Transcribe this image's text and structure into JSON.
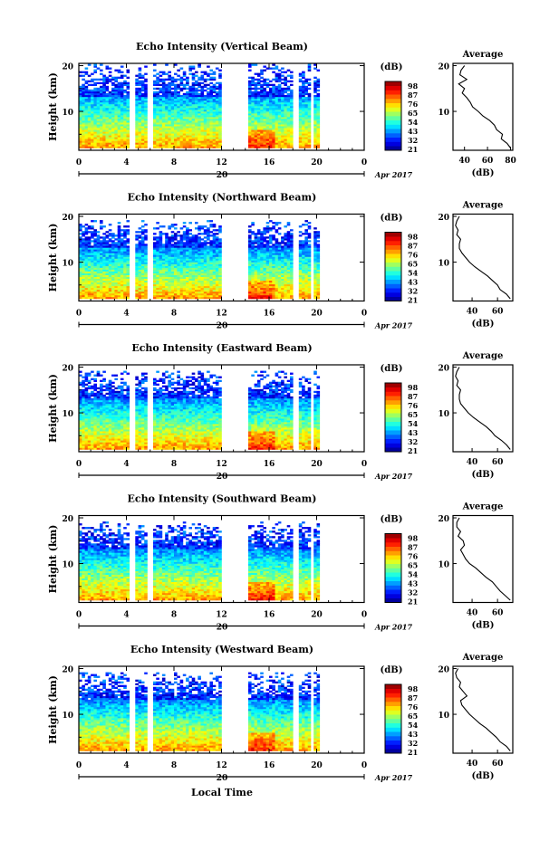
{
  "figure": {
    "x_axis_title": "Local Time",
    "date_label": "Apr 2017",
    "day_label": "20",
    "colorbar_unit": "(dB)",
    "avg_unit": "(dB)"
  },
  "chart_data": [
    {
      "type": "heatmap",
      "title": "Echo Intensity (Vertical Beam)",
      "ylabel": "Height (km)",
      "x_ticks": [
        "0",
        "4",
        "8",
        "12",
        "16",
        "20",
        "0"
      ],
      "xlim": [
        0,
        24
      ],
      "y_ticks": [
        "20",
        "10"
      ],
      "ylim": [
        1.5,
        20.5
      ],
      "colorbar_ticks": [
        "98",
        "87",
        "76",
        "65",
        "54",
        "43",
        "32",
        "21"
      ],
      "gaps_hours": [
        [
          4.2,
          4.7
        ],
        [
          5.7,
          6.1
        ],
        [
          11.9,
          14.1
        ],
        [
          18.0,
          18.3
        ],
        [
          19.3,
          19.6
        ]
      ],
      "top_km": 20,
      "avg_panel": {
        "title": "Average",
        "x_ticks": [
          "40",
          "60",
          "80"
        ],
        "xlim": [
          30,
          82
        ],
        "y_ticks": [
          "20",
          "10"
        ],
        "profile": [
          [
            80,
            2
          ],
          [
            77,
            3
          ],
          [
            72,
            4
          ],
          [
            73,
            5
          ],
          [
            68,
            6
          ],
          [
            66,
            7
          ],
          [
            62,
            8
          ],
          [
            56,
            9
          ],
          [
            52,
            10
          ],
          [
            47,
            11
          ],
          [
            45,
            12
          ],
          [
            42,
            13
          ],
          [
            38,
            14
          ],
          [
            40,
            15
          ],
          [
            35,
            16
          ],
          [
            42,
            17
          ],
          [
            36,
            18
          ],
          [
            37,
            19
          ],
          [
            40,
            20
          ]
        ]
      }
    },
    {
      "type": "heatmap",
      "title": "Echo Intensity (Northward Beam)",
      "ylabel": "Height (km)",
      "x_ticks": [
        "0",
        "4",
        "8",
        "12",
        "16",
        "20",
        "0"
      ],
      "xlim": [
        0,
        24
      ],
      "y_ticks": [
        "20",
        "10"
      ],
      "ylim": [
        1.5,
        20.5
      ],
      "colorbar_ticks": [
        "98",
        "87",
        "76",
        "65",
        "54",
        "43",
        "32",
        "21"
      ],
      "gaps_hours": [
        [
          4.2,
          4.7
        ],
        [
          5.7,
          6.1
        ],
        [
          11.9,
          14.1
        ],
        [
          18.0,
          18.3
        ],
        [
          19.3,
          19.6
        ]
      ],
      "top_km": 19,
      "avg_panel": {
        "title": "Average",
        "x_ticks": [
          "40",
          "60"
        ],
        "xlim": [
          25,
          72
        ],
        "y_ticks": [
          "20",
          "10"
        ],
        "profile": [
          [
            70,
            2
          ],
          [
            67,
            3
          ],
          [
            62,
            4
          ],
          [
            60,
            5
          ],
          [
            56,
            6
          ],
          [
            52,
            7
          ],
          [
            47,
            8
          ],
          [
            42,
            9
          ],
          [
            38,
            10
          ],
          [
            35,
            11
          ],
          [
            32,
            12
          ],
          [
            30,
            13
          ],
          [
            30,
            14
          ],
          [
            31,
            15
          ],
          [
            28,
            16
          ],
          [
            29,
            17
          ],
          [
            27,
            18
          ],
          [
            28,
            19
          ],
          [
            30,
            20
          ]
        ]
      }
    },
    {
      "type": "heatmap",
      "title": "Echo Intensity (Eastward Beam)",
      "ylabel": "Height (km)",
      "x_ticks": [
        "0",
        "4",
        "8",
        "12",
        "16",
        "20",
        "0"
      ],
      "xlim": [
        0,
        24
      ],
      "y_ticks": [
        "20",
        "10"
      ],
      "ylim": [
        1.5,
        20.5
      ],
      "colorbar_ticks": [
        "98",
        "87",
        "76",
        "65",
        "54",
        "43",
        "32",
        "21"
      ],
      "gaps_hours": [
        [
          4.2,
          4.7
        ],
        [
          5.7,
          6.1
        ],
        [
          11.9,
          14.1
        ],
        [
          18.0,
          18.3
        ],
        [
          19.3,
          19.6
        ]
      ],
      "top_km": 19,
      "avg_panel": {
        "title": "Average",
        "x_ticks": [
          "40",
          "60"
        ],
        "xlim": [
          25,
          72
        ],
        "y_ticks": [
          "20",
          "10"
        ],
        "profile": [
          [
            70,
            2
          ],
          [
            67,
            3
          ],
          [
            63,
            4
          ],
          [
            58,
            5
          ],
          [
            55,
            6
          ],
          [
            51,
            7
          ],
          [
            46,
            8
          ],
          [
            41,
            9
          ],
          [
            37,
            10
          ],
          [
            34,
            11
          ],
          [
            31,
            12
          ],
          [
            30,
            13
          ],
          [
            30,
            14
          ],
          [
            31,
            15
          ],
          [
            28,
            16
          ],
          [
            29,
            17
          ],
          [
            27,
            18
          ],
          [
            28,
            19
          ],
          [
            30,
            20
          ]
        ]
      }
    },
    {
      "type": "heatmap",
      "title": "Echo Intensity (Southward Beam)",
      "ylabel": "Height (km)",
      "x_ticks": [
        "0",
        "4",
        "8",
        "12",
        "16",
        "20",
        "0"
      ],
      "xlim": [
        0,
        24
      ],
      "y_ticks": [
        "20",
        "10"
      ],
      "ylim": [
        1.5,
        20.5
      ],
      "colorbar_ticks": [
        "98",
        "87",
        "76",
        "65",
        "54",
        "43",
        "32",
        "21"
      ],
      "gaps_hours": [
        [
          4.2,
          4.7
        ],
        [
          5.7,
          6.1
        ],
        [
          11.9,
          14.1
        ],
        [
          18.0,
          18.3
        ],
        [
          19.3,
          19.6
        ]
      ],
      "top_km": 19,
      "avg_panel": {
        "title": "Average",
        "x_ticks": [
          "40",
          "60"
        ],
        "xlim": [
          25,
          72
        ],
        "y_ticks": [
          "20",
          "10"
        ],
        "profile": [
          [
            70,
            2
          ],
          [
            66,
            3
          ],
          [
            62,
            4
          ],
          [
            59,
            5
          ],
          [
            56,
            6
          ],
          [
            51,
            7
          ],
          [
            47,
            8
          ],
          [
            43,
            9
          ],
          [
            38,
            10
          ],
          [
            35,
            11
          ],
          [
            33,
            12
          ],
          [
            31,
            13
          ],
          [
            34,
            14
          ],
          [
            33,
            15
          ],
          [
            29,
            16
          ],
          [
            31,
            17
          ],
          [
            28,
            18
          ],
          [
            28,
            19
          ],
          [
            30,
            20
          ]
        ]
      }
    },
    {
      "type": "heatmap",
      "title": "Echo Intensity (Westward Beam)",
      "ylabel": "Height (km)",
      "x_ticks": [
        "0",
        "4",
        "8",
        "12",
        "16",
        "20",
        "0"
      ],
      "xlim": [
        0,
        24
      ],
      "y_ticks": [
        "20",
        "10"
      ],
      "ylim": [
        1.5,
        20.5
      ],
      "colorbar_ticks": [
        "98",
        "87",
        "76",
        "65",
        "54",
        "43",
        "32",
        "21"
      ],
      "gaps_hours": [
        [
          4.2,
          4.7
        ],
        [
          5.7,
          6.1
        ],
        [
          11.9,
          14.1
        ],
        [
          18.0,
          18.3
        ],
        [
          19.3,
          19.6
        ]
      ],
      "top_km": 19,
      "avg_panel": {
        "title": "Average",
        "x_ticks": [
          "40",
          "60"
        ],
        "xlim": [
          25,
          72
        ],
        "y_ticks": [
          "20",
          "10"
        ],
        "profile": [
          [
            70,
            2
          ],
          [
            67,
            3
          ],
          [
            62,
            4
          ],
          [
            59,
            5
          ],
          [
            55,
            6
          ],
          [
            51,
            7
          ],
          [
            46,
            8
          ],
          [
            42,
            9
          ],
          [
            38,
            10
          ],
          [
            35,
            11
          ],
          [
            32,
            12
          ],
          [
            31,
            13
          ],
          [
            36,
            14
          ],
          [
            33,
            15
          ],
          [
            30,
            16
          ],
          [
            31,
            17
          ],
          [
            28,
            18
          ],
          [
            27,
            19
          ],
          [
            29,
            20
          ]
        ]
      }
    }
  ]
}
